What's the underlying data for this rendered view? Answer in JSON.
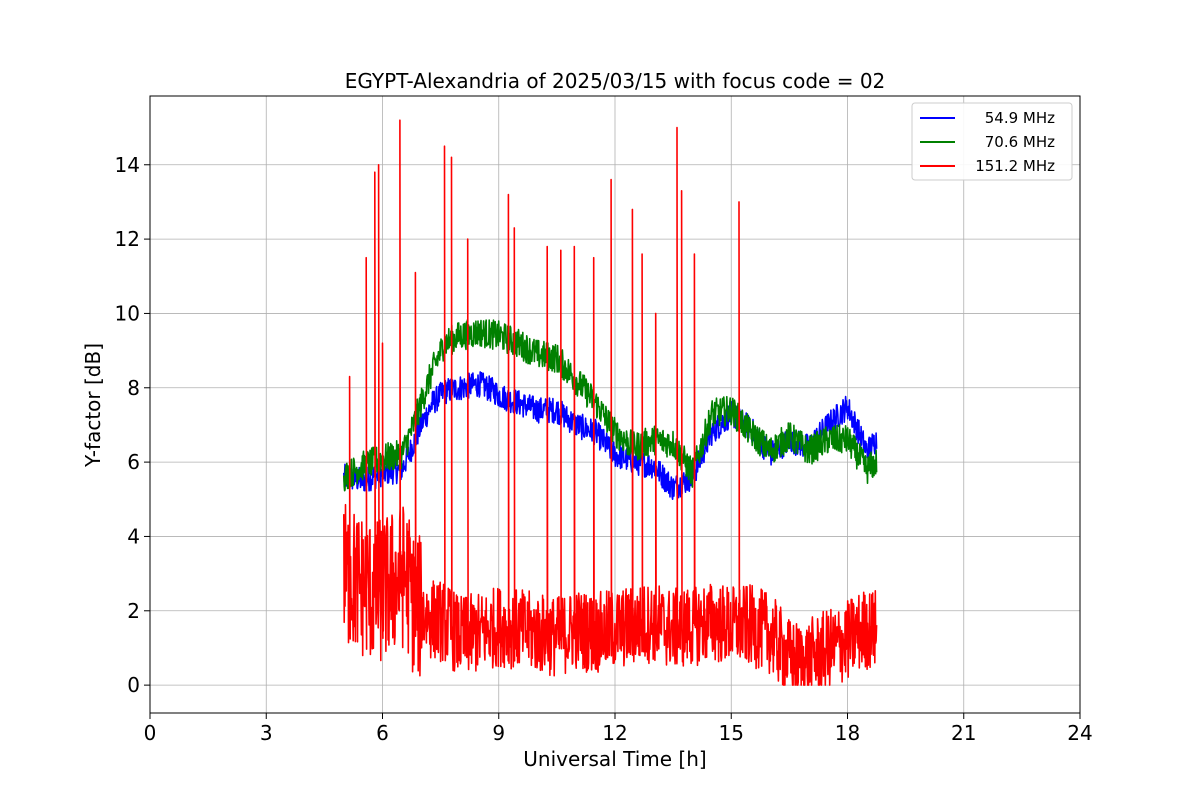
{
  "chart_data": {
    "type": "line",
    "title": "EGYPT-Alexandria of 2025/03/15 with focus code = 02",
    "xlabel": "Universal Time [h]",
    "ylabel": "Y-factor [dB]",
    "xlim": [
      0,
      24
    ],
    "ylim": [
      -0.75,
      15.85
    ],
    "xticks": [
      0,
      3,
      6,
      9,
      12,
      15,
      18,
      21,
      24
    ],
    "yticks": [
      0,
      2,
      4,
      6,
      8,
      10,
      12,
      14
    ],
    "grid": true,
    "legend_position": "top-right",
    "series": [
      {
        "name": "54.9 MHz",
        "color": "#0000ff",
        "x": [
          5.0,
          5.5,
          6.0,
          6.5,
          6.8,
          7.0,
          7.3,
          7.6,
          8.0,
          8.5,
          8.9,
          9.0,
          9.5,
          10.0,
          10.5,
          11.0,
          11.5,
          12.0,
          12.5,
          13.0,
          13.5,
          14.0,
          14.5,
          15.0,
          15.5,
          16.0,
          16.5,
          17.0,
          17.5,
          18.0,
          18.5,
          18.75
        ],
        "y": [
          5.6,
          5.5,
          5.7,
          5.8,
          6.5,
          7.0,
          7.6,
          7.9,
          8.0,
          8.1,
          7.9,
          7.8,
          7.6,
          7.4,
          7.4,
          7.0,
          6.8,
          6.2,
          6.0,
          5.9,
          5.3,
          5.6,
          6.8,
          7.3,
          6.9,
          6.2,
          6.6,
          6.4,
          7.0,
          7.5,
          6.3,
          6.6
        ]
      },
      {
        "name": "70.6 MHz",
        "color": "#008000",
        "x": [
          5.0,
          5.5,
          6.0,
          6.5,
          6.8,
          7.0,
          7.3,
          7.6,
          8.0,
          8.5,
          9.0,
          9.5,
          10.0,
          10.5,
          11.0,
          11.5,
          12.0,
          12.5,
          13.0,
          13.5,
          14.0,
          14.5,
          15.0,
          15.5,
          16.0,
          16.5,
          17.0,
          17.5,
          18.0,
          18.5,
          18.75
        ],
        "y": [
          5.6,
          5.9,
          6.1,
          6.2,
          7.0,
          7.6,
          8.5,
          9.2,
          9.4,
          9.5,
          9.4,
          9.2,
          8.9,
          8.8,
          8.2,
          7.6,
          6.8,
          6.4,
          6.6,
          6.5,
          5.7,
          7.3,
          7.4,
          6.8,
          6.3,
          6.7,
          6.3,
          6.6,
          6.6,
          5.8,
          6.0
        ]
      },
      {
        "name": "151.2 MHz",
        "color": "#ff0000",
        "x": [
          5.0,
          5.3,
          5.6,
          6.0,
          6.3,
          6.6,
          6.8,
          7.2,
          7.6,
          8.0,
          8.5,
          9.0,
          9.5,
          10.0,
          10.5,
          11.0,
          11.5,
          12.0,
          12.5,
          13.0,
          13.5,
          14.0,
          14.5,
          15.0,
          15.5,
          16.0,
          16.5,
          16.8,
          17.2,
          17.6,
          18.0,
          18.4,
          18.75
        ],
        "y": [
          3.0,
          2.8,
          2.6,
          2.5,
          2.8,
          3.0,
          2.2,
          1.8,
          1.7,
          1.3,
          1.4,
          1.6,
          1.5,
          1.4,
          1.3,
          1.5,
          1.4,
          1.5,
          1.6,
          1.7,
          1.5,
          1.6,
          1.7,
          1.6,
          1.6,
          1.4,
          0.7,
          0.6,
          0.8,
          1.0,
          1.2,
          1.5,
          1.5
        ],
        "spikes": [
          {
            "x": 5.15,
            "y": 8.3
          },
          {
            "x": 5.58,
            "y": 11.5
          },
          {
            "x": 5.8,
            "y": 13.8
          },
          {
            "x": 5.9,
            "y": 14.0
          },
          {
            "x": 6.0,
            "y": 9.2
          },
          {
            "x": 6.45,
            "y": 15.2
          },
          {
            "x": 6.85,
            "y": 11.1
          },
          {
            "x": 7.6,
            "y": 14.5
          },
          {
            "x": 7.78,
            "y": 14.2
          },
          {
            "x": 8.2,
            "y": 12.0
          },
          {
            "x": 9.25,
            "y": 13.2
          },
          {
            "x": 9.4,
            "y": 12.3
          },
          {
            "x": 10.25,
            "y": 11.8
          },
          {
            "x": 10.6,
            "y": 11.7
          },
          {
            "x": 10.95,
            "y": 11.8
          },
          {
            "x": 11.45,
            "y": 11.5
          },
          {
            "x": 11.9,
            "y": 13.6
          },
          {
            "x": 12.45,
            "y": 12.8
          },
          {
            "x": 12.7,
            "y": 11.6
          },
          {
            "x": 13.05,
            "y": 10.0
          },
          {
            "x": 13.6,
            "y": 15.0
          },
          {
            "x": 13.72,
            "y": 13.3
          },
          {
            "x": 14.05,
            "y": 11.6
          },
          {
            "x": 15.2,
            "y": 13.0
          }
        ]
      }
    ]
  }
}
